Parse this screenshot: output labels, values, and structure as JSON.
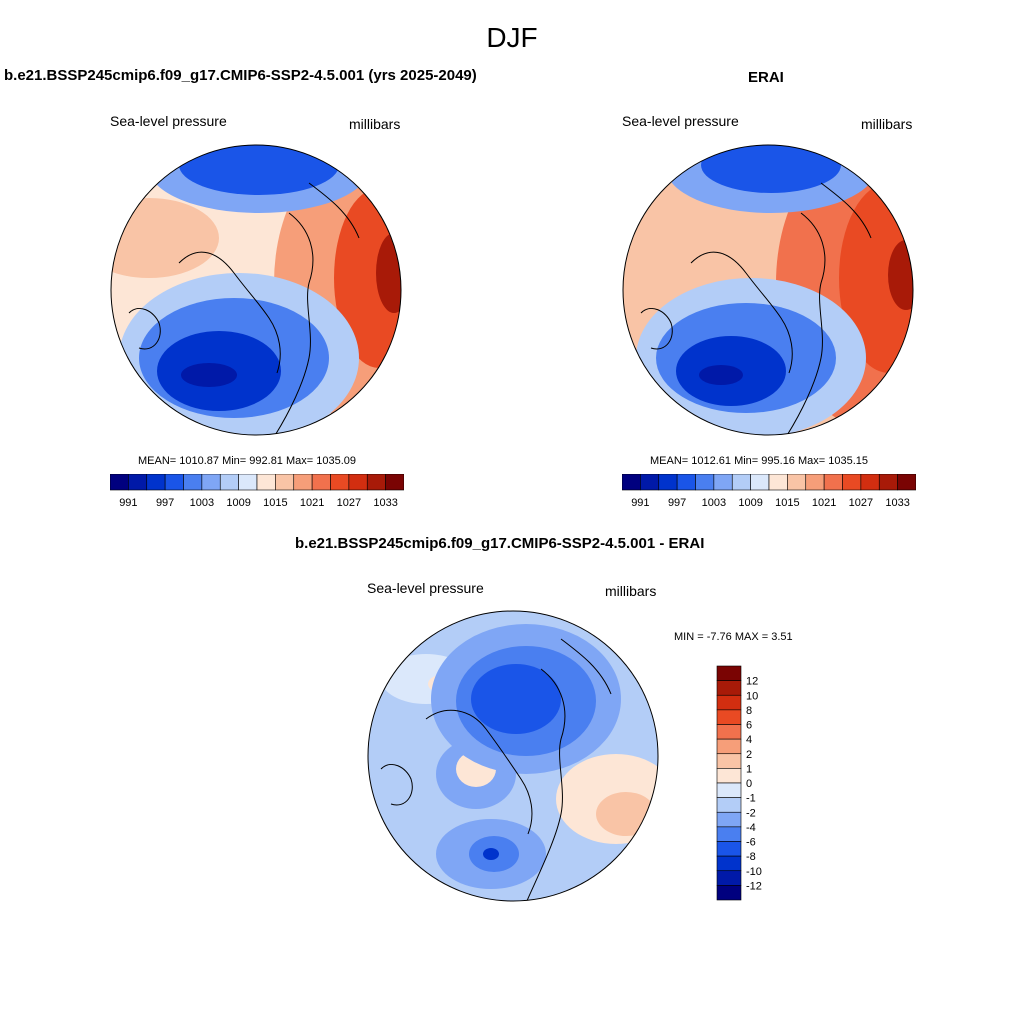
{
  "figure": {
    "title": "DJF"
  },
  "panels": [
    {
      "title": "b.e21.BSSP245cmip6.f09_g17.CMIP6-SSP2-4.5.001 (yrs 2025-2049)",
      "variable": "Sea-level pressure",
      "units": "millibars",
      "stats": {
        "mean": "1010.87",
        "min": "992.81",
        "max": "1035.09"
      },
      "stats_text": "MEAN= 1010.87  Min= 992.81  Max= 1035.09"
    },
    {
      "title": "ERAI",
      "variable": "Sea-level pressure",
      "units": "millibars",
      "stats": {
        "mean": "1012.61",
        "min": "995.16",
        "max": "1035.15"
      },
      "stats_text": "MEAN= 1012.61  Min= 995.16  Max= 1035.15"
    },
    {
      "title": "b.e21.BSSP245cmip6.f09_g17.CMIP6-SSP2-4.5.001 - ERAI",
      "variable": "Sea-level pressure",
      "units": "millibars",
      "stats": {
        "min": "-7.76",
        "max": "3.51"
      },
      "stats_text": "MIN =  -7.76 MAX =   3.51"
    }
  ],
  "colorbar_abs": {
    "colors": [
      "#00007f",
      "#0019a8",
      "#0033cc",
      "#1a55e8",
      "#4a7ff0",
      "#7fa6f5",
      "#b3cdf7",
      "#dbe8fb",
      "#fde6d6",
      "#f9c4a6",
      "#f69e79",
      "#f1714d",
      "#e94a23",
      "#d22e10",
      "#a81a08",
      "#7a0403"
    ],
    "tick_labels": [
      "991",
      "997",
      "1003",
      "1009",
      "1015",
      "1021",
      "1027",
      "1033"
    ]
  },
  "colorbar_diff": {
    "colors": [
      "#7a0403",
      "#a81a08",
      "#d22e10",
      "#e94a23",
      "#f1714d",
      "#f69e79",
      "#f9c4a6",
      "#fde6d6",
      "#dbe8fb",
      "#b3cdf7",
      "#7fa6f5",
      "#4a7ff0",
      "#1a55e8",
      "#0033cc",
      "#0019a8",
      "#00007f"
    ],
    "tick_labels": [
      "12",
      "10",
      "8",
      "6",
      "4",
      "2",
      "1",
      "0",
      "-1",
      "-2",
      "-4",
      "-6",
      "-8",
      "-10",
      "-12"
    ]
  },
  "chart_data": {
    "type": "heatmap",
    "title": "DJF",
    "projection": "north polar stereographic",
    "variable": "Sea-level pressure",
    "units": "millibars",
    "panels": [
      {
        "name": "b.e21.BSSP245cmip6.f09_g17.CMIP6-SSP2-4.5.001 (yrs 2025-2049)",
        "mean": 1010.87,
        "min": 992.81,
        "max": 1035.09,
        "levels": [
          991,
          994,
          997,
          1000,
          1003,
          1006,
          1009,
          1012,
          1015,
          1018,
          1021,
          1024,
          1027,
          1030,
          1033
        ]
      },
      {
        "name": "ERAI",
        "mean": 1012.61,
        "min": 995.16,
        "max": 1035.15,
        "levels": [
          991,
          994,
          997,
          1000,
          1003,
          1006,
          1009,
          1012,
          1015,
          1018,
          1021,
          1024,
          1027,
          1030,
          1033
        ]
      },
      {
        "name": "b.e21.BSSP245cmip6.f09_g17.CMIP6-SSP2-4.5.001 - ERAI",
        "min": -7.76,
        "max": 3.51,
        "levels": [
          -12,
          -10,
          -8,
          -6,
          -4,
          -2,
          -1,
          0,
          1,
          2,
          4,
          6,
          8,
          10,
          12
        ]
      }
    ]
  }
}
